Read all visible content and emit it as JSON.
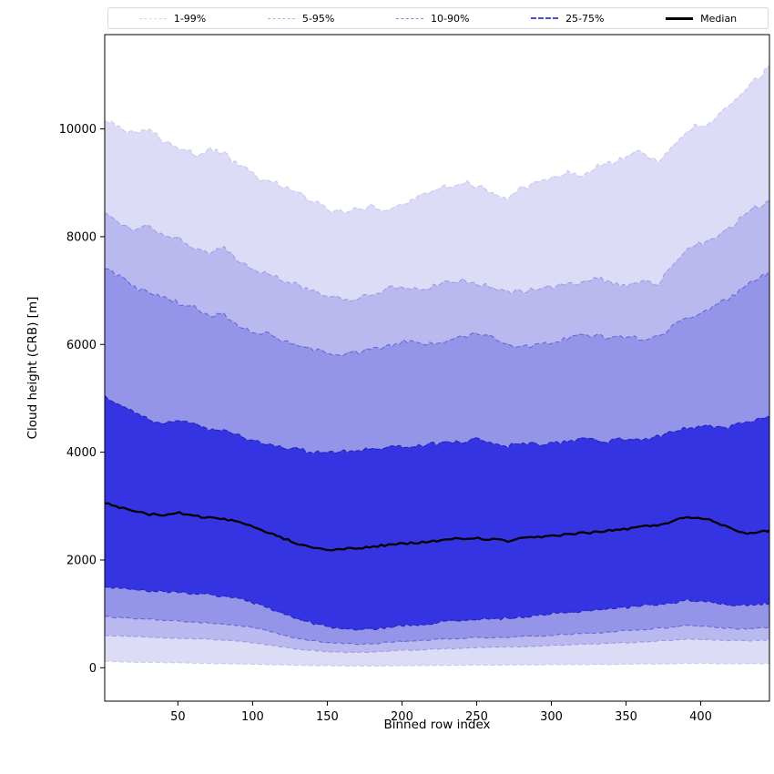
{
  "legend": {
    "items": [
      {
        "label": "1-99%",
        "line_color": "#d2d2f4",
        "style": "dashed",
        "width": 1
      },
      {
        "label": "5-95%",
        "line_color": "#b0b0ee",
        "style": "dashed",
        "width": 1
      },
      {
        "label": "10-90%",
        "line_color": "#8a8ae6",
        "style": "dashed",
        "width": 1
      },
      {
        "label": "25-75%",
        "line_color": "#4a4ad4",
        "style": "dashed",
        "width": 2
      },
      {
        "label": "Median",
        "line_color": "#000000",
        "style": "solid",
        "width": 3
      }
    ]
  },
  "chart_data": {
    "type": "area",
    "subtype": "percentile-fan-chart",
    "title": "",
    "xlabel": "Binned row index",
    "ylabel": "Cloud height (CRB) [m]",
    "xlim": [
      1,
      446
    ],
    "ylim": [
      -620,
      11750
    ],
    "x_ticks": [
      50,
      100,
      150,
      200,
      250,
      300,
      350,
      400
    ],
    "y_ticks": [
      0,
      2000,
      4000,
      6000,
      8000,
      10000
    ],
    "grid": false,
    "legend_position": "top",
    "median_color": "#000000",
    "bands": [
      {
        "name": "1-99%",
        "lower": "p1",
        "upper": "p99",
        "fill": "#dcdcf6",
        "edge": "#c8c8f0"
      },
      {
        "name": "5-95%",
        "lower": "p5",
        "upper": "p95",
        "fill": "#b9b9f0",
        "edge": "#9a9ae8"
      },
      {
        "name": "10-90%",
        "lower": "p10",
        "upper": "p90",
        "fill": "#9494e9",
        "edge": "#6666dd"
      },
      {
        "name": "25-75%",
        "lower": "p25",
        "upper": "p75",
        "fill": "#3434e2",
        "edge": "#2222bb"
      }
    ],
    "x": [
      1,
      11,
      21,
      31,
      41,
      51,
      61,
      71,
      81,
      91,
      101,
      111,
      121,
      131,
      141,
      151,
      161,
      171,
      181,
      191,
      201,
      211,
      221,
      231,
      241,
      251,
      261,
      271,
      281,
      291,
      301,
      311,
      321,
      331,
      341,
      351,
      361,
      371,
      381,
      391,
      401,
      411,
      421,
      431,
      441,
      446
    ],
    "percentiles": {
      "p99": [
        10150,
        10020,
        9900,
        9960,
        9780,
        9650,
        9520,
        9610,
        9540,
        9300,
        9160,
        9010,
        8950,
        8790,
        8660,
        8510,
        8450,
        8530,
        8560,
        8470,
        8610,
        8730,
        8900,
        8960,
        9010,
        8940,
        8820,
        8700,
        8910,
        9000,
        9080,
        9210,
        9140,
        9300,
        9390,
        9510,
        9560,
        9380,
        9710,
        9990,
        10080,
        10210,
        10460,
        10760,
        11010,
        11200
      ],
      "p95": [
        8450,
        8260,
        8120,
        8190,
        8040,
        7950,
        7800,
        7700,
        7790,
        7520,
        7420,
        7300,
        7180,
        7080,
        7000,
        6910,
        6820,
        6880,
        6950,
        7030,
        7080,
        7000,
        7090,
        7150,
        7210,
        7120,
        7050,
        6950,
        7000,
        7030,
        7060,
        7110,
        7180,
        7230,
        7150,
        7100,
        7170,
        7100,
        7500,
        7730,
        7900,
        8030,
        8200,
        8460,
        8600,
        8700
      ],
      "p90": [
        7400,
        7250,
        7050,
        6950,
        6880,
        6760,
        6680,
        6520,
        6560,
        6320,
        6250,
        6180,
        6080,
        5980,
        5900,
        5850,
        5800,
        5860,
        5900,
        5980,
        6050,
        6020,
        6000,
        6090,
        6150,
        6220,
        6150,
        6000,
        5950,
        6010,
        6060,
        6110,
        6200,
        6150,
        6100,
        6170,
        6080,
        6150,
        6320,
        6500,
        6620,
        6730,
        6900,
        7080,
        7280,
        7350
      ],
      "p75": [
        5050,
        4900,
        4750,
        4610,
        4550,
        4600,
        4520,
        4430,
        4380,
        4300,
        4220,
        4150,
        4100,
        4050,
        4000,
        3980,
        4010,
        4050,
        4080,
        4100,
        4100,
        4130,
        4150,
        4180,
        4200,
        4250,
        4160,
        4120,
        4180,
        4150,
        4170,
        4200,
        4250,
        4210,
        4220,
        4250,
        4230,
        4300,
        4380,
        4450,
        4500,
        4450,
        4480,
        4550,
        4620,
        4650
      ],
      "median": [
        3050,
        2980,
        2900,
        2850,
        2830,
        2870,
        2820,
        2780,
        2750,
        2700,
        2600,
        2500,
        2400,
        2300,
        2230,
        2200,
        2200,
        2220,
        2250,
        2280,
        2300,
        2320,
        2350,
        2380,
        2400,
        2400,
        2380,
        2350,
        2400,
        2420,
        2450,
        2480,
        2500,
        2520,
        2550,
        2580,
        2620,
        2650,
        2720,
        2800,
        2780,
        2700,
        2580,
        2500,
        2520,
        2550
      ],
      "p25": [
        1500,
        1480,
        1450,
        1430,
        1420,
        1400,
        1380,
        1350,
        1320,
        1280,
        1200,
        1100,
        1000,
        900,
        820,
        760,
        720,
        700,
        720,
        750,
        780,
        800,
        830,
        860,
        880,
        900,
        900,
        920,
        940,
        960,
        1000,
        1020,
        1050,
        1080,
        1100,
        1120,
        1150,
        1180,
        1200,
        1250,
        1240,
        1200,
        1170,
        1150,
        1180,
        1200
      ],
      "p10": [
        950,
        930,
        920,
        900,
        890,
        870,
        850,
        830,
        800,
        780,
        740,
        680,
        600,
        540,
        500,
        470,
        450,
        440,
        450,
        470,
        490,
        510,
        520,
        540,
        550,
        560,
        560,
        570,
        580,
        590,
        610,
        620,
        640,
        650,
        670,
        690,
        710,
        730,
        750,
        780,
        770,
        750,
        730,
        720,
        740,
        750
      ],
      "p5": [
        600,
        590,
        580,
        570,
        560,
        550,
        540,
        530,
        510,
        490,
        460,
        420,
        380,
        340,
        320,
        300,
        290,
        285,
        295,
        310,
        325,
        335,
        345,
        355,
        365,
        375,
        380,
        390,
        395,
        405,
        415,
        425,
        435,
        445,
        455,
        465,
        480,
        495,
        510,
        530,
        525,
        515,
        505,
        500,
        510,
        520
      ],
      "p1": [
        120,
        110,
        105,
        100,
        95,
        90,
        85,
        80,
        75,
        70,
        65,
        58,
        52,
        46,
        40,
        36,
        33,
        32,
        33,
        35,
        38,
        40,
        43,
        46,
        48,
        50,
        50,
        52,
        53,
        55,
        57,
        58,
        60,
        62,
        64,
        66,
        68,
        70,
        74,
        80,
        82,
        78,
        75,
        73,
        77,
        80
      ]
    }
  }
}
